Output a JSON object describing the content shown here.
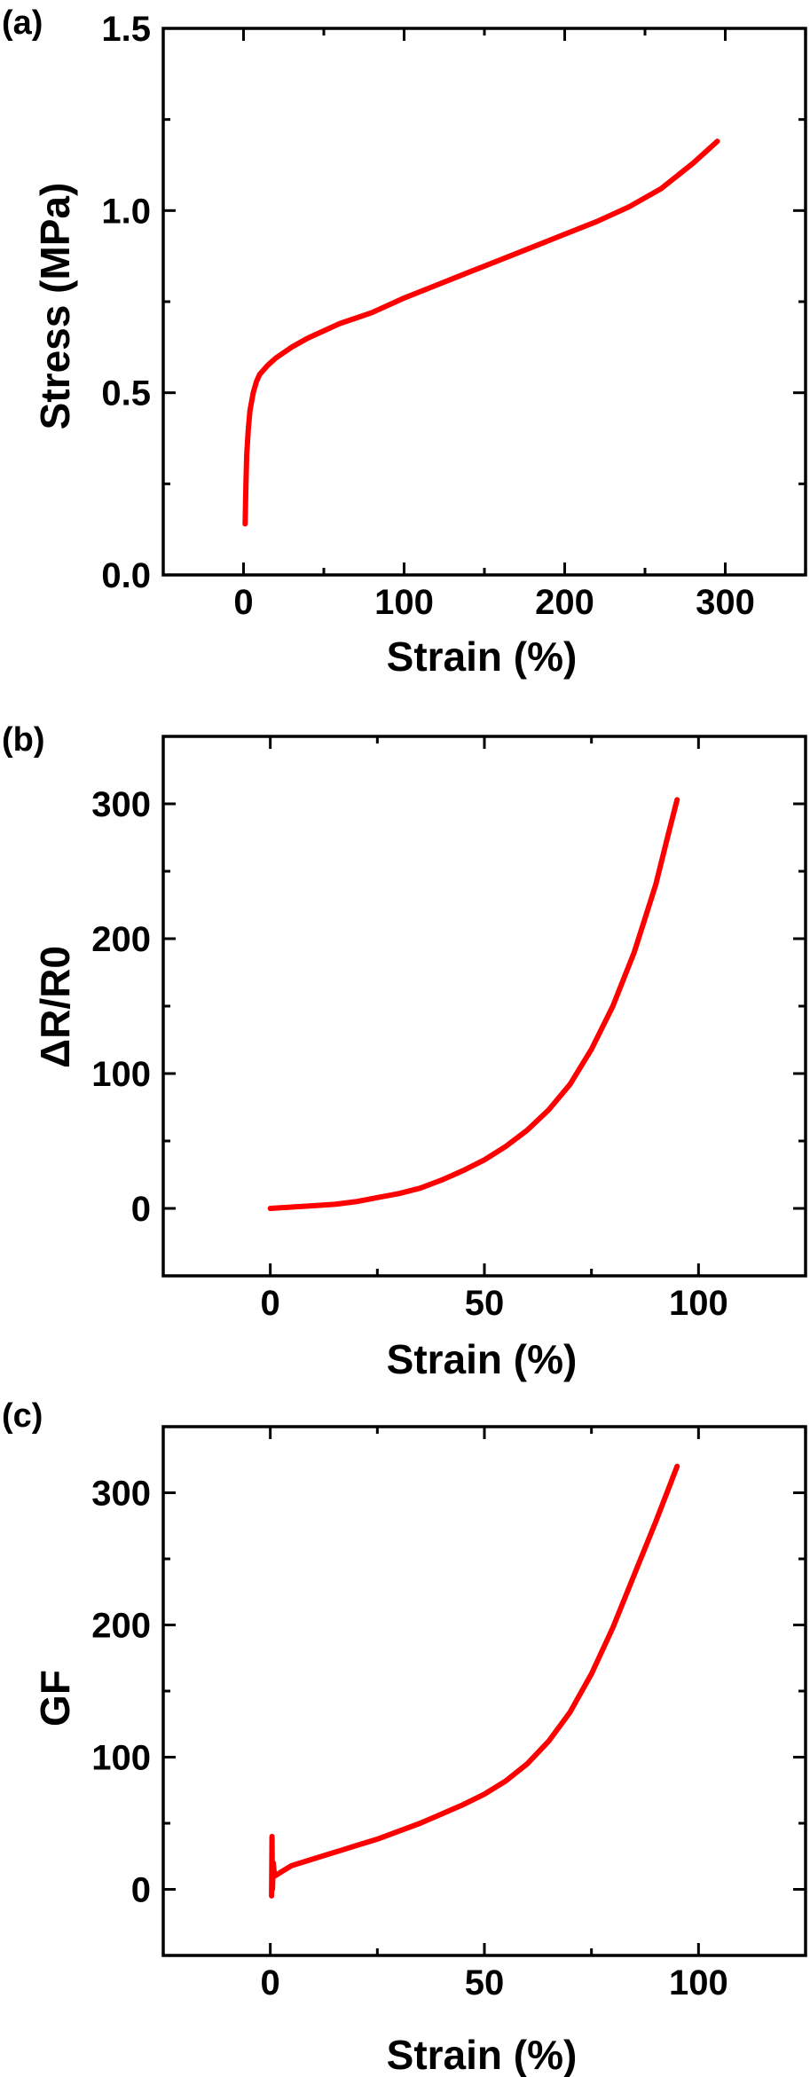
{
  "chart_data": [
    {
      "type": "line",
      "panel_label": "(a)",
      "xlabel": "Strain (%)",
      "ylabel": "Stress (MPa)",
      "xlim": [
        -50,
        350
      ],
      "ylim": [
        0.0,
        1.5
      ],
      "xticks": [
        0,
        100,
        200,
        300
      ],
      "xtick_labels": [
        "0",
        "100",
        "200",
        "300"
      ],
      "yticks": [
        0.0,
        0.5,
        1.0,
        1.5
      ],
      "ytick_labels": [
        "0.0",
        "0.5",
        "1.0",
        "1.5"
      ],
      "grid": false,
      "series": [
        {
          "color": "#ff0000",
          "x": [
            1,
            1.5,
            2,
            3,
            4,
            6,
            8,
            10,
            15,
            20,
            30,
            40,
            50,
            60,
            70,
            80,
            100,
            120,
            140,
            160,
            180,
            200,
            220,
            240,
            260,
            280,
            295
          ],
          "y": [
            0.14,
            0.25,
            0.33,
            0.4,
            0.45,
            0.5,
            0.53,
            0.55,
            0.575,
            0.595,
            0.625,
            0.65,
            0.67,
            0.69,
            0.705,
            0.72,
            0.76,
            0.795,
            0.83,
            0.865,
            0.9,
            0.935,
            0.97,
            1.01,
            1.06,
            1.13,
            1.19
          ]
        }
      ]
    },
    {
      "type": "line",
      "panel_label": "(b)",
      "xlabel": "Strain (%)",
      "ylabel": "ΔR/R0",
      "xlim": [
        -25,
        125
      ],
      "ylim": [
        -50,
        350
      ],
      "xticks": [
        0,
        50,
        100
      ],
      "xtick_labels": [
        "0",
        "50",
        "100"
      ],
      "yticks": [
        0,
        100,
        200,
        300
      ],
      "ytick_labels": [
        "0",
        "100",
        "200",
        "300"
      ],
      "grid": false,
      "series": [
        {
          "color": "#ff0000",
          "x": [
            0,
            5,
            10,
            15,
            20,
            25,
            30,
            35,
            40,
            45,
            50,
            55,
            60,
            65,
            70,
            75,
            80,
            85,
            90,
            93,
            95
          ],
          "y": [
            0,
            1,
            2,
            3,
            5,
            8,
            11,
            15,
            21,
            28,
            36,
            46,
            58,
            73,
            92,
            118,
            150,
            190,
            240,
            278,
            303
          ]
        }
      ]
    },
    {
      "type": "line",
      "panel_label": "(c)",
      "xlabel": "Strain (%)",
      "ylabel": "GF",
      "xlim": [
        -25,
        125
      ],
      "ylim": [
        -50,
        350
      ],
      "xticks": [
        0,
        50,
        100
      ],
      "xtick_labels": [
        "0",
        "50",
        "100"
      ],
      "yticks": [
        0,
        100,
        200,
        300
      ],
      "ytick_labels": [
        "0",
        "100",
        "200",
        "300"
      ],
      "grid": false,
      "series": [
        {
          "color": "#ff0000",
          "x": [
            0.3,
            0.4,
            0.5,
            0.7,
            1,
            2,
            3,
            5,
            7,
            10,
            15,
            20,
            25,
            30,
            35,
            40,
            45,
            50,
            55,
            60,
            65,
            70,
            75,
            80,
            85,
            90,
            93,
            95
          ],
          "y": [
            -5,
            40,
            0,
            20,
            10,
            12,
            14,
            18,
            20,
            23,
            28,
            33,
            38,
            44,
            50,
            57,
            64,
            72,
            82,
            95,
            112,
            134,
            163,
            198,
            238,
            278,
            303,
            320
          ]
        }
      ]
    }
  ]
}
